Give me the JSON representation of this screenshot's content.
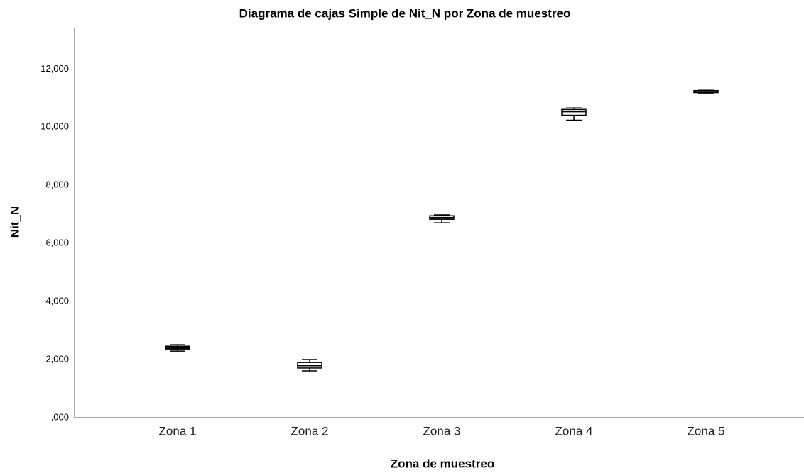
{
  "chart_data": {
    "type": "box",
    "title": "Diagrama de cajas Simple de Nit_N por Zona de muestreo",
    "x_label": "Zona de muestreo",
    "y_label": "Nit_N",
    "categories": [
      "Zona 1",
      "Zona 2",
      "Zona 3",
      "Zona 4",
      "Zona 5"
    ],
    "boxes": [
      {
        "min": 2290,
        "q1": 2340,
        "median": 2390,
        "q3": 2460,
        "max": 2510
      },
      {
        "min": 1610,
        "q1": 1710,
        "median": 1800,
        "q3": 1900,
        "max": 2000
      },
      {
        "min": 6710,
        "q1": 6830,
        "median": 6880,
        "q3": 6950,
        "max": 6980
      },
      {
        "min": 10240,
        "q1": 10410,
        "median": 10540,
        "q3": 10610,
        "max": 10660
      },
      {
        "min": 11150,
        "q1": 11190,
        "median": 11240,
        "q3": 11260,
        "max": 11270
      }
    ],
    "color": "#ffffff",
    "ylim": [
      0,
      13400
    ],
    "yticks": [
      {
        "value": 0,
        "label": ",000"
      },
      {
        "value": 2000,
        "label": "2,000"
      },
      {
        "value": 4000,
        "label": "4,000"
      },
      {
        "value": 6000,
        "label": "6,000"
      },
      {
        "value": 8000,
        "label": "8,000"
      },
      {
        "value": 10000,
        "label": "10,000"
      },
      {
        "value": 12000,
        "label": "12,000"
      }
    ],
    "grid": false
  }
}
